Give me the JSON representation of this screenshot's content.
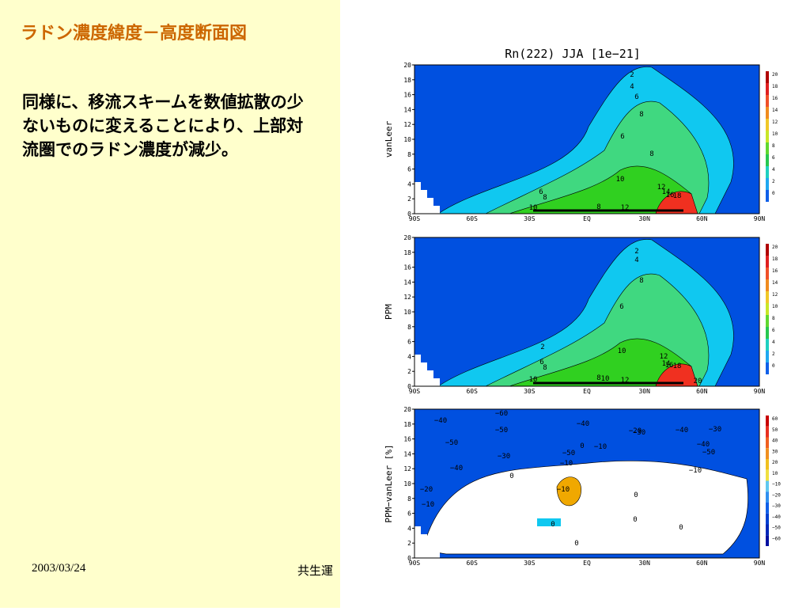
{
  "slide": {
    "title": "ラドン濃度緯度－高度断面図",
    "body": "同様に、移流スキームを数値拡散の少ないものに変えることにより、上部対流圏でのラドン濃度が減少。",
    "footer_date": "2003/03/24",
    "footer_text": "共生運"
  },
  "figure": {
    "title": "Rn(222) JJA [1e−21]",
    "panels": [
      {
        "ylabel": "vanLeer",
        "contour_labels": [
          "2",
          "4",
          "6",
          "8",
          "6",
          "8",
          "10",
          "12",
          "14",
          "16",
          "18",
          "6",
          "8",
          "10",
          "8",
          "12"
        ],
        "colorbar": [
          "20",
          "18",
          "16",
          "14",
          "12",
          "10",
          "8",
          "6",
          "4",
          "2",
          "0"
        ]
      },
      {
        "ylabel": "PPM",
        "contour_labels": [
          "2",
          "4",
          "8",
          "6",
          "2",
          "10",
          "12",
          "14",
          "16",
          "18",
          "6",
          "8",
          "10",
          "10",
          "8",
          "12",
          "20"
        ],
        "colorbar": [
          "20",
          "18",
          "16",
          "14",
          "12",
          "10",
          "8",
          "6",
          "4",
          "2",
          "0"
        ]
      },
      {
        "ylabel": "PPM−vanLeer [%]",
        "contour_labels": [
          "−60",
          "−50",
          "−40",
          "−50",
          "−40",
          "−50",
          "−20",
          "−30",
          "−40",
          "−30",
          "−40",
          "−50",
          "−30",
          "−40",
          "−20",
          "−10",
          "−10",
          "−10",
          "−10",
          "0",
          "0",
          "0",
          "0",
          "0",
          "0",
          "0",
          "−10"
        ],
        "colorbar": [
          "60",
          "50",
          "40",
          "30",
          "20",
          "10",
          "−10",
          "−20",
          "−30",
          "−40",
          "−50",
          "−60"
        ]
      }
    ],
    "x_ticks": [
      "90S",
      "60S",
      "30S",
      "EQ",
      "30N",
      "60N",
      "90N"
    ],
    "y_ticks": [
      "0",
      "2",
      "4",
      "6",
      "8",
      "10",
      "12",
      "14",
      "16",
      "18",
      "20"
    ],
    "colors": {
      "background_left": "#ffffcc",
      "title": "#cc6600",
      "blue": "#0050e0",
      "cyan": "#10c8f0",
      "green": "#30d020",
      "red": "#f03020",
      "orange": "#f0a800",
      "white": "#ffffff"
    }
  }
}
